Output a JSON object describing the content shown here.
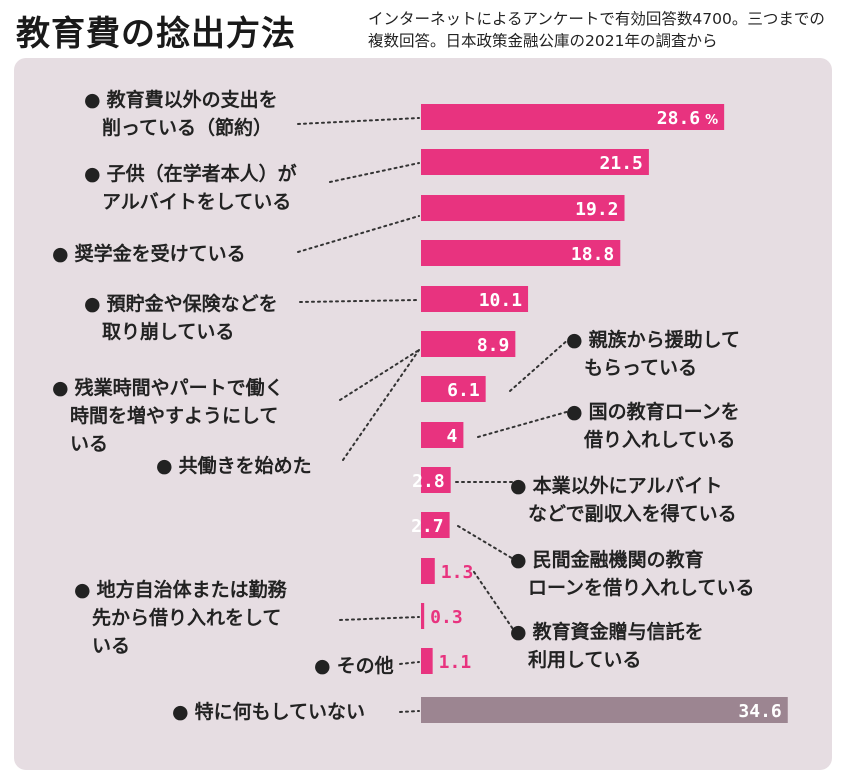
{
  "title": "教育費の捻出方法",
  "subtitle": "インターネットによるアンケートで有効回答数4700。三つまでの複数回答。日本政策金融公庫の2021年の調査から",
  "colors": {
    "bar": "#e8337f",
    "bar_light": "#f6b9d3",
    "bar_other": "#9c8591",
    "panel": "#e6dde2",
    "text": "#222222"
  },
  "chart_data": {
    "type": "bar",
    "orientation": "horizontal",
    "unit": "%",
    "categories": [
      "教育費以外の支出を削っている（節約）",
      "子供（在学者本人）がアルバイトをしている",
      "奨学金を受けている",
      "預貯金や保険などを取り崩している",
      "残業時間やパートで働く時間を増やすようにしている",
      "共働きを始めた",
      "親族から援助してもらっている",
      "国の教育ローンを借り入れしている",
      "本業以外にアルバイトなどで副収入を得ている",
      "民間金融機関の教育ローンを借り入れしている",
      "教育資金贈与信託を利用している",
      "地方自治体または勤務先から借り入れをしている",
      "その他",
      "特に何もしていない"
    ],
    "values": [
      28.6,
      21.5,
      19.2,
      18.8,
      10.1,
      8.9,
      6.1,
      4,
      2.8,
      2.7,
      1.3,
      0.3,
      1.1,
      34.6
    ],
    "value_labels": [
      "28.6",
      "21.5",
      "19.2",
      "18.8",
      "10.1",
      "8.9",
      "6.1",
      "4",
      "2.8",
      "2.7",
      "1.3",
      "0.3",
      "1.1",
      "34.6"
    ],
    "first_value_unit": "%"
  },
  "labels": {
    "l0": [
      "教育費以外の支出を",
      "削っている（節約）"
    ],
    "l1": [
      "子供（在学者本人）が",
      "アルバイトをしている"
    ],
    "l2": [
      "奨学金を受けている"
    ],
    "l3": [
      "預貯金や保険などを",
      "取り崩している"
    ],
    "l4": [
      "残業時間やパートで働く",
      "時間を増やすようにして",
      "いる"
    ],
    "l5": [
      "共働きを始めた"
    ],
    "l6": [
      "親族から援助して",
      "もらっている"
    ],
    "l7": [
      "国の教育ローンを",
      "借り入れしている"
    ],
    "l8": [
      "本業以外にアルバイト",
      "などで副収入を得ている"
    ],
    "l9": [
      "民間金融機関の教育",
      "ローンを借り入れしている"
    ],
    "l10": [
      "教育資金贈与信託を",
      "利用している"
    ],
    "l11": [
      "地方自治体または勤務",
      "先から借り入れをして",
      "いる"
    ],
    "l12": [
      "その他"
    ],
    "l13": [
      "特に何もしていない"
    ]
  },
  "label_lines_flat": {
    "l0a": "教育費以外の支出を",
    "l0b": "削っている（節約）",
    "l1a": "子供（在学者本人）が",
    "l1b": "アルバイトをしている",
    "l2a": "奨学金を受けている",
    "l3a": "預貯金や保険などを",
    "l3b": "取り崩している",
    "l4a": "残業時間やパートで働く",
    "l4b": "時間を増やすようにして",
    "l4c": "いる",
    "l5a": "共働きを始めた",
    "l6a": "親族から援助して",
    "l6b": "もらっている",
    "l7a": "国の教育ローンを",
    "l7b": "借り入れしている",
    "l8a": "本業以外にアルバイト",
    "l8b": "などで副収入を得ている",
    "l9a": "民間金融機関の教育",
    "l9b": "ローンを借り入れしている",
    "l10a": "教育資金贈与信託を",
    "l10b": "利用している",
    "l11a": "地方自治体または勤務",
    "l11b": "先から借り入れをして",
    "l11c": "いる",
    "l12a": "その他",
    "l13a": "特に何もしていない"
  }
}
